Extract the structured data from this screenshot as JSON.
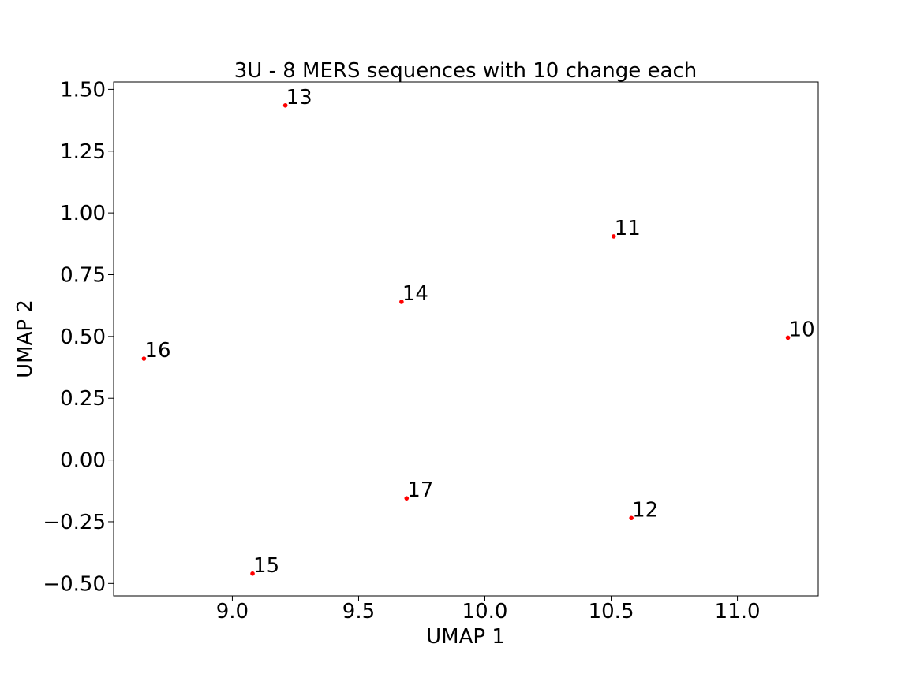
{
  "chart_data": {
    "type": "scatter",
    "title": "3U - 8 MERS sequences with 10 change each",
    "xlabel": "UMAP 1",
    "ylabel": "UMAP 2",
    "xlim": [
      8.53,
      11.32
    ],
    "ylim": [
      -0.55,
      1.53
    ],
    "xticks": [
      9.0,
      9.5,
      10.0,
      10.5,
      11.0
    ],
    "xtick_labels": [
      "9.0",
      "9.5",
      "10.0",
      "10.5",
      "11.0"
    ],
    "yticks": [
      1.5,
      1.25,
      1.0,
      0.75,
      0.5,
      0.25,
      0.0,
      -0.25,
      -0.5
    ],
    "ytick_labels": [
      "1.50",
      "1.25",
      "1.00",
      "0.75",
      "0.50",
      "0.25",
      "0.00",
      "−0.25",
      "−0.50"
    ],
    "grid": false,
    "marker_color": "#ff0000",
    "points": [
      {
        "label": "10",
        "x": 11.2,
        "y": 0.495
      },
      {
        "label": "11",
        "x": 10.51,
        "y": 0.905
      },
      {
        "label": "12",
        "x": 10.58,
        "y": -0.235
      },
      {
        "label": "13",
        "x": 9.21,
        "y": 1.435
      },
      {
        "label": "14",
        "x": 9.67,
        "y": 0.64
      },
      {
        "label": "15",
        "x": 9.08,
        "y": -0.46
      },
      {
        "label": "16",
        "x": 8.65,
        "y": 0.41
      },
      {
        "label": "17",
        "x": 9.69,
        "y": -0.155
      }
    ]
  }
}
